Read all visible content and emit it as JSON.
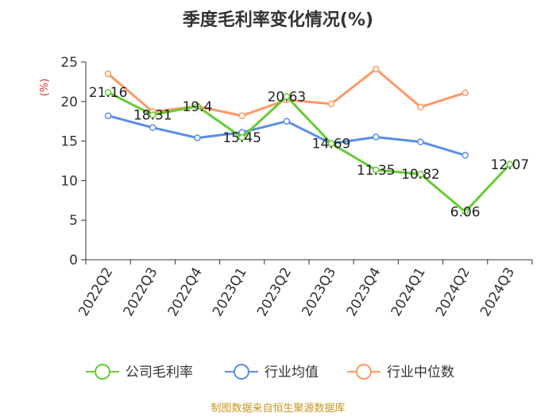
{
  "chart_data": {
    "type": "line",
    "title": "季度毛利率变化情况(%)",
    "ylabel": "(%)",
    "xlabel": "",
    "categories": [
      "2022Q2",
      "2022Q3",
      "2022Q4",
      "2023Q1",
      "2023Q2",
      "2023Q3",
      "2023Q4",
      "2024Q1",
      "2024Q2",
      "2024Q3"
    ],
    "ylim": [
      0,
      25
    ],
    "yticks": [
      0,
      5,
      10,
      15,
      20,
      25
    ],
    "grid": false,
    "legend_position": "bottom",
    "series": [
      {
        "name": "公司毛利率",
        "color": "#66cc33",
        "values": [
          21.16,
          18.31,
          19.4,
          15.45,
          20.63,
          14.69,
          11.35,
          10.82,
          6.06,
          12.07
        ],
        "labels": [
          "21.16",
          "18.31",
          "19.4",
          "15.45",
          "20.63",
          "14.69",
          "11.35",
          "10.82",
          "6.06",
          "12.07"
        ]
      },
      {
        "name": "行业均值",
        "color": "#5b8ee6",
        "values": [
          18.2,
          16.7,
          15.4,
          16.1,
          17.5,
          14.7,
          15.5,
          14.9,
          13.2,
          null
        ]
      },
      {
        "name": "行业中位数",
        "color": "#ff9966",
        "values": [
          23.5,
          18.7,
          19.4,
          18.2,
          20.2,
          19.7,
          24.1,
          19.3,
          21.1,
          null
        ]
      }
    ]
  },
  "source": "制图数据来自恒生聚源数据库"
}
